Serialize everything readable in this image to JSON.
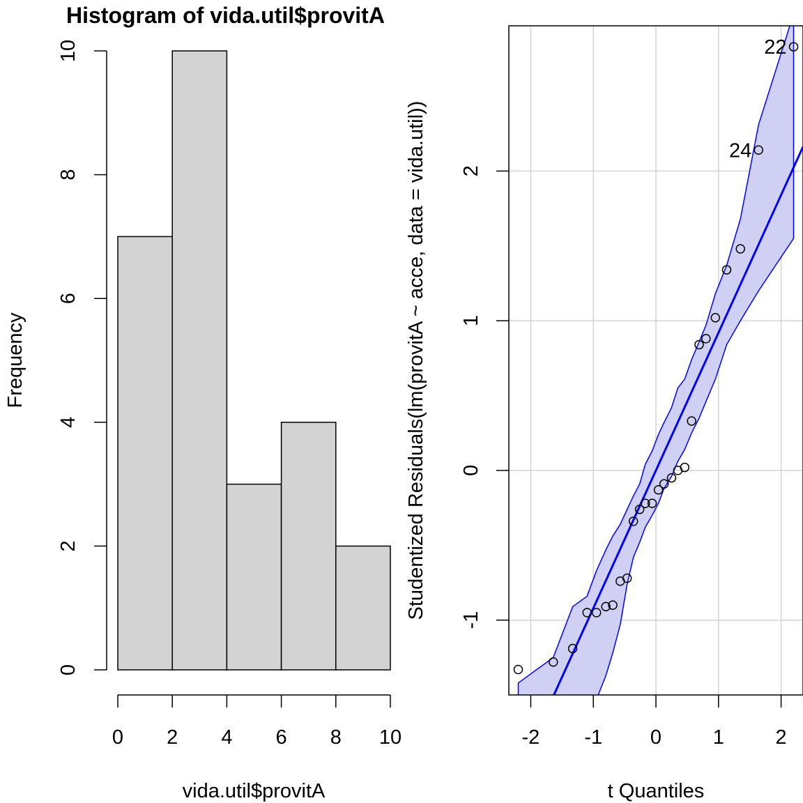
{
  "chart_data": [
    {
      "type": "bar",
      "title": "Histogram of vida.util$provitA",
      "xlabel": "vida.util$provitA",
      "ylabel": "Frequency",
      "bin_edges": [
        0,
        2,
        4,
        6,
        8,
        10
      ],
      "values": [
        7,
        10,
        3,
        4,
        2
      ],
      "xlim": [
        0,
        10
      ],
      "ylim": [
        0,
        10
      ],
      "xticks": [
        "0",
        "2",
        "4",
        "6",
        "8",
        "10"
      ],
      "yticks": [
        "0",
        "2",
        "4",
        "6",
        "8",
        "10"
      ],
      "bar_color": "#d3d3d3",
      "grid": false
    },
    {
      "type": "scatter",
      "title": "",
      "xlabel": "t Quantiles",
      "ylabel": "Studentized Residuals(lm(provitA ~ acce, data = vida.util))",
      "xlim": [
        -2.35,
        2.35
      ],
      "ylim": [
        -1.5,
        2.97
      ],
      "xticks": [
        "-2",
        "-1",
        "0",
        "1",
        "2"
      ],
      "yticks": [
        "-1",
        "0",
        "1",
        "2"
      ],
      "grid": true,
      "point_color": "#000000",
      "line_color": "#0000ff",
      "band_fill": "#d0d0f5",
      "points": [
        {
          "x": -2.2,
          "y": -1.33,
          "label": ""
        },
        {
          "x": -1.64,
          "y": -1.28,
          "label": ""
        },
        {
          "x": -1.33,
          "y": -1.19,
          "label": ""
        },
        {
          "x": -1.1,
          "y": -0.95,
          "label": ""
        },
        {
          "x": -0.95,
          "y": -0.95,
          "label": ""
        },
        {
          "x": -0.8,
          "y": -0.91,
          "label": ""
        },
        {
          "x": -0.69,
          "y": -0.9,
          "label": ""
        },
        {
          "x": -0.57,
          "y": -0.74,
          "label": ""
        },
        {
          "x": -0.46,
          "y": -0.72,
          "label": ""
        },
        {
          "x": -0.36,
          "y": -0.34,
          "label": ""
        },
        {
          "x": -0.26,
          "y": -0.26,
          "label": ""
        },
        {
          "x": -0.17,
          "y": -0.22,
          "label": ""
        },
        {
          "x": -0.06,
          "y": -0.22,
          "label": ""
        },
        {
          "x": 0.04,
          "y": -0.13,
          "label": ""
        },
        {
          "x": 0.13,
          "y": -0.09,
          "label": ""
        },
        {
          "x": 0.25,
          "y": -0.05,
          "label": ""
        },
        {
          "x": 0.35,
          "y": 0.0,
          "label": ""
        },
        {
          "x": 0.46,
          "y": 0.02,
          "label": ""
        },
        {
          "x": 0.57,
          "y": 0.33,
          "label": ""
        },
        {
          "x": 0.69,
          "y": 0.84,
          "label": ""
        },
        {
          "x": 0.8,
          "y": 0.88,
          "label": ""
        },
        {
          "x": 0.95,
          "y": 1.02,
          "label": ""
        },
        {
          "x": 1.13,
          "y": 1.34,
          "label": ""
        },
        {
          "x": 1.35,
          "y": 1.48,
          "label": ""
        },
        {
          "x": 1.64,
          "y": 2.14,
          "label": "24"
        },
        {
          "x": 2.2,
          "y": 2.83,
          "label": "22"
        }
      ],
      "reference_line": {
        "intercept": 0.0,
        "slope": 0.92
      },
      "band_x": [
        -2.2,
        -1.64,
        -1.33,
        -1.1,
        -0.95,
        -0.8,
        -0.69,
        -0.57,
        -0.46,
        -0.36,
        -0.26,
        -0.17,
        -0.06,
        0.04,
        0.13,
        0.25,
        0.35,
        0.46,
        0.57,
        0.69,
        0.8,
        0.95,
        1.13,
        1.35,
        1.64,
        2.2
      ],
      "band_upper": [
        -1.42,
        -1.25,
        -0.91,
        -0.84,
        -0.67,
        -0.53,
        -0.44,
        -0.36,
        -0.26,
        -0.17,
        -0.09,
        0.04,
        0.13,
        0.24,
        0.32,
        0.42,
        0.55,
        0.61,
        0.74,
        0.86,
        0.97,
        1.18,
        1.37,
        1.68,
        2.31,
        3.05
      ],
      "band_lower": [
        -1.55,
        -1.55,
        -1.55,
        -1.55,
        -1.53,
        -1.37,
        -1.22,
        -1.03,
        -0.76,
        -0.58,
        -0.48,
        -0.38,
        -0.3,
        -0.22,
        -0.12,
        -0.04,
        0.06,
        0.14,
        0.25,
        0.35,
        0.46,
        0.61,
        0.84,
        1.0,
        1.2,
        1.55
      ]
    }
  ]
}
